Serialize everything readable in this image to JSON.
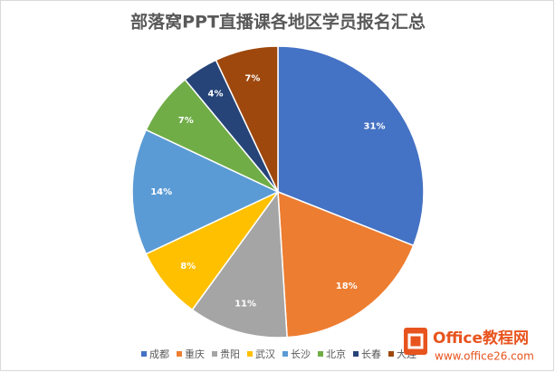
{
  "chart_data": {
    "type": "pie",
    "title": "部落窝PPT直播课各地区学员报名汇总",
    "categories": [
      "成都",
      "重庆",
      "贵阳",
      "武汉",
      "长沙",
      "北京",
      "长春",
      "大连"
    ],
    "values": [
      31,
      18,
      11,
      8,
      14,
      7,
      4,
      7
    ],
    "value_labels": [
      "31%",
      "18%",
      "11%",
      "8%",
      "14%",
      "7%",
      "4%",
      "7%"
    ],
    "colors": [
      "#4472c4",
      "#ed7d31",
      "#a5a5a5",
      "#ffc000",
      "#5b9bd5",
      "#70ad47",
      "#264478",
      "#9e480e"
    ],
    "legend": "bottom"
  },
  "watermark": {
    "title": "Office教程网",
    "url": "www.office26.com"
  }
}
